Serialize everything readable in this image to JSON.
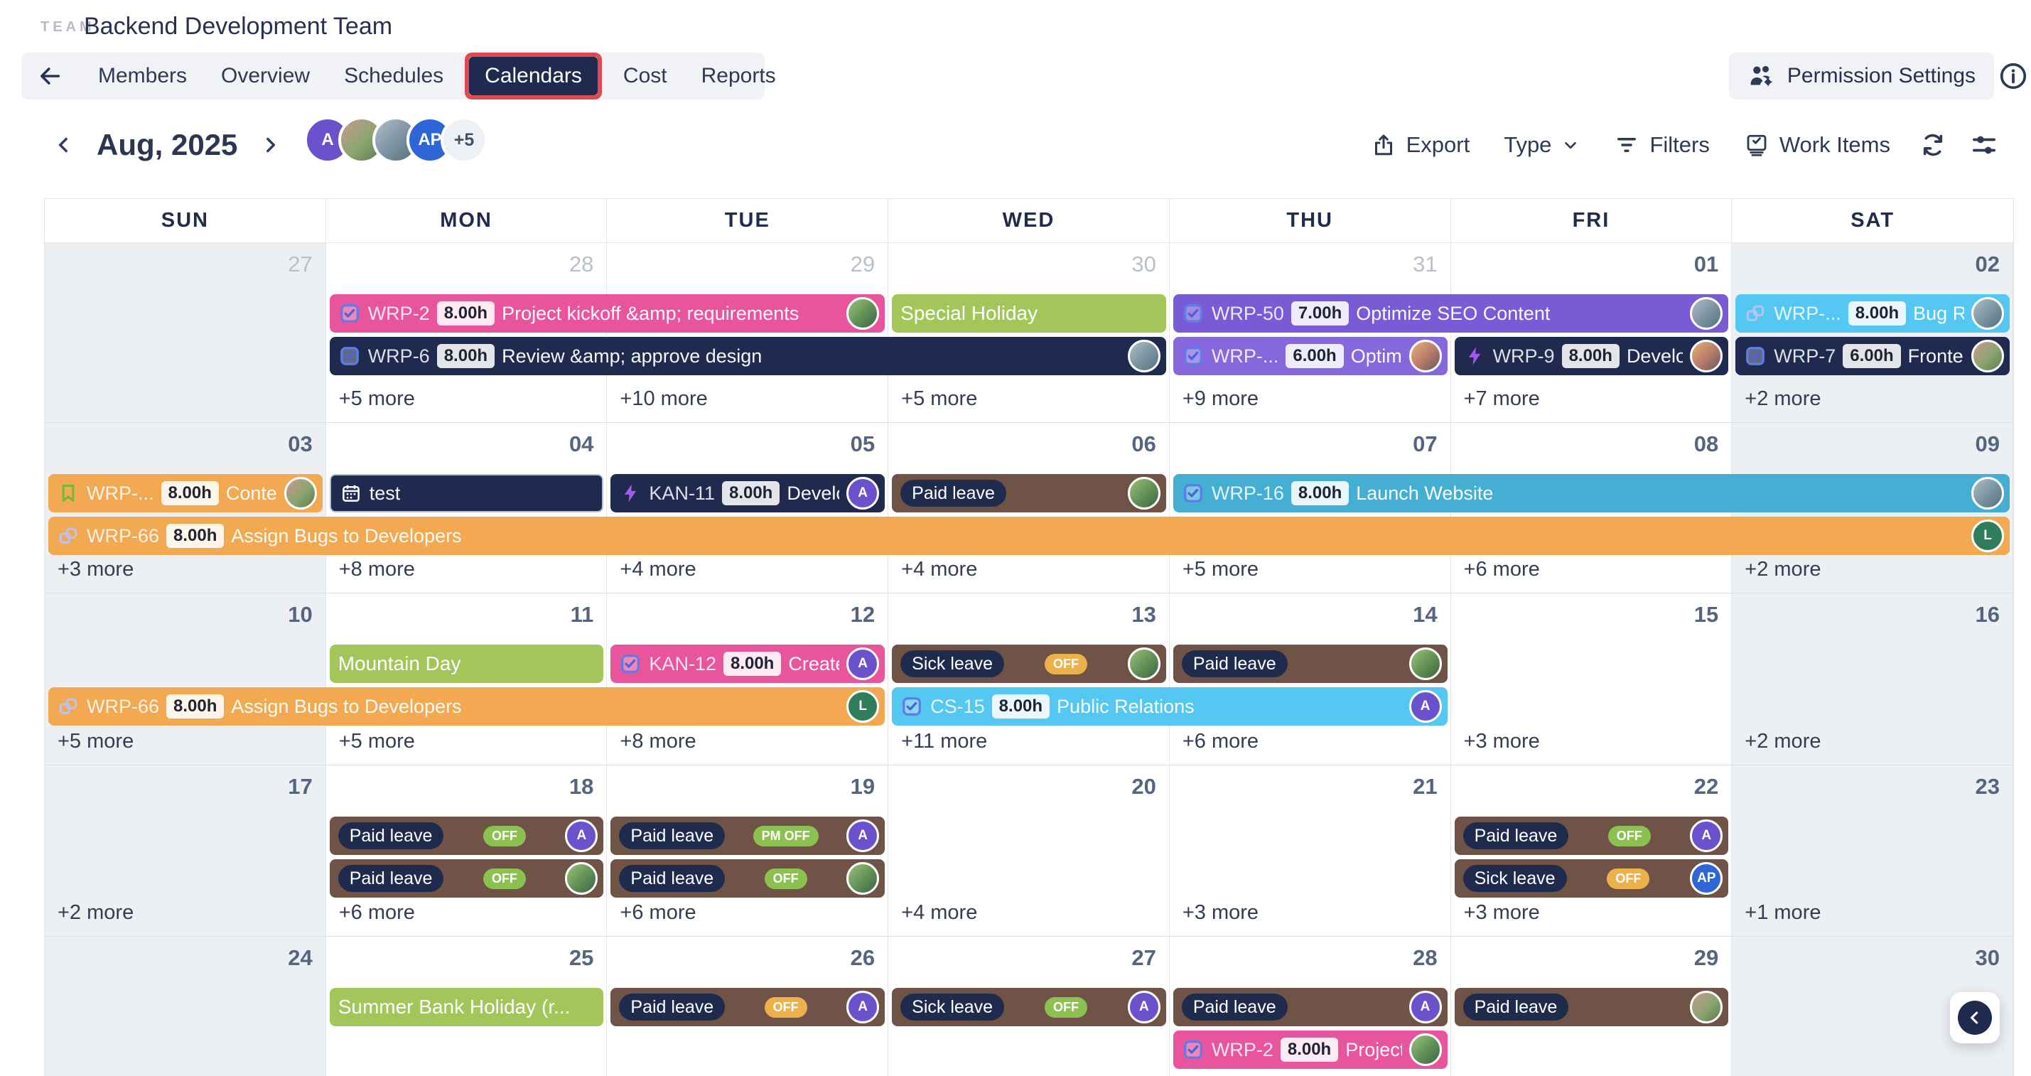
{
  "palette": {
    "accent_red": "#DF4A50",
    "navy": "#1F2A4E",
    "event_pink": "#E9559D",
    "event_green": "#A2C65A",
    "event_purple": "#7A5BD6",
    "event_purple_light": "#8668DC",
    "event_cyan": "#55C7F3",
    "event_teal": "#45AFD3",
    "event_orange": "#F2A952",
    "event_brown": "#6F5347",
    "badge_green": "#8CC152",
    "badge_orange": "#EDB14C",
    "avatar_purple": "#6A52CC",
    "avatar_blue": "#2E66D8",
    "avatar_green": "#2E7D5B",
    "weekend_bg": "#EDF0F3",
    "grid_border": "#E3E6EA"
  },
  "header": {
    "team_label": "TEAM",
    "title": "Backend Development Team",
    "tabs": [
      {
        "label": "Members",
        "active": false
      },
      {
        "label": "Overview",
        "active": false
      },
      {
        "label": "Schedules",
        "active": false
      },
      {
        "label": "Calendars",
        "active": true
      },
      {
        "label": "Cost",
        "active": false
      },
      {
        "label": "Reports",
        "active": false
      }
    ],
    "permission_settings_label": "Permission Settings"
  },
  "toolbar": {
    "month_label": "Aug, 2025",
    "avatars": [
      {
        "kind": "initial",
        "text": "A",
        "bg": "#6A52CC"
      },
      {
        "kind": "photo",
        "variant": "p1"
      },
      {
        "kind": "photo",
        "variant": "p2"
      },
      {
        "kind": "initial",
        "text": "AP",
        "bg": "#2E66D8"
      }
    ],
    "overflow_label": "+5",
    "export_label": "Export",
    "type_label": "Type",
    "filters_label": "Filters",
    "work_items_label": "Work Items"
  },
  "calendar": {
    "day_headers": [
      "SUN",
      "MON",
      "TUE",
      "WED",
      "THU",
      "FRI",
      "SAT"
    ],
    "weeks": [
      {
        "days": [
          {
            "date": "27",
            "outside": true
          },
          {
            "date": "28",
            "outside": true,
            "more": "+5 more"
          },
          {
            "date": "29",
            "outside": true,
            "more": "+10 more"
          },
          {
            "date": "30",
            "outside": true,
            "more": "+5 more"
          },
          {
            "date": "31",
            "outside": true,
            "more": "+9 more"
          },
          {
            "date": "01",
            "more": "+7 more"
          },
          {
            "date": "02",
            "more": "+2 more"
          }
        ],
        "events": [
          {
            "lane": 0,
            "col": 1,
            "span": 2,
            "variant": "pink",
            "kind": "task",
            "icon": "checkbox",
            "code": "WRP-2",
            "hours": "8.00h",
            "title": "Project kickoff &amp; requirements",
            "avatar": {
              "kind": "photo",
              "variant": "p4"
            }
          },
          {
            "lane": 0,
            "col": 3,
            "span": 1,
            "variant": "green",
            "kind": "holiday",
            "title": "Special Holiday"
          },
          {
            "lane": 0,
            "col": 4,
            "span": 2,
            "variant": "purple",
            "kind": "task",
            "icon": "checkbox",
            "code": "WRP-50",
            "hours": "7.00h",
            "title": "Optimize SEO Content",
            "avatar": {
              "kind": "photo",
              "variant": "p2"
            }
          },
          {
            "lane": 0,
            "col": 6,
            "span": 1,
            "variant": "cyan",
            "kind": "task",
            "icon": "link",
            "code": "WRP-...",
            "hours": "8.00h",
            "title": "Bug Report",
            "avatar": {
              "kind": "photo",
              "variant": "p2"
            }
          },
          {
            "lane": 1,
            "col": 1,
            "span": 3,
            "variant": "navy",
            "kind": "task",
            "icon": "checkbox",
            "code": "WRP-6",
            "hours": "8.00h",
            "title": "Review &amp; approve design",
            "avatar": {
              "kind": "photo",
              "variant": "p2"
            }
          },
          {
            "lane": 1,
            "col": 4,
            "span": 1,
            "variant": "purple2",
            "kind": "task",
            "icon": "checkbox",
            "code": "WRP-...",
            "hours": "6.00h",
            "title": "Optimize SEO",
            "avatar": {
              "kind": "photo",
              "variant": "p3"
            }
          },
          {
            "lane": 1,
            "col": 5,
            "span": 1,
            "variant": "navy",
            "kind": "task",
            "icon": "lightning",
            "code": "WRP-9",
            "hours": "8.00h",
            "title": "Development",
            "avatar": {
              "kind": "photo",
              "variant": "p3"
            }
          },
          {
            "lane": 1,
            "col": 6,
            "span": 1,
            "variant": "navy",
            "kind": "task",
            "icon": "checkbox",
            "code": "WRP-7",
            "hours": "6.00h",
            "title": "Frontend Dev",
            "avatar": {
              "kind": "photo",
              "variant": "p1"
            }
          }
        ]
      },
      {
        "days": [
          {
            "date": "03",
            "more": "+3 more"
          },
          {
            "date": "04",
            "more": "+8 more"
          },
          {
            "date": "05",
            "more": "+4 more"
          },
          {
            "date": "06",
            "more": "+4 more"
          },
          {
            "date": "07",
            "more": "+5 more"
          },
          {
            "date": "08",
            "more": "+6 more"
          },
          {
            "date": "09",
            "more": "+2 more"
          }
        ],
        "events": [
          {
            "lane": 0,
            "col": 0,
            "span": 1,
            "variant": "orange",
            "kind": "task",
            "icon": "bookmark",
            "code": "WRP-...",
            "hours": "8.00h",
            "title": "Content Audit",
            "avatar": {
              "kind": "photo",
              "variant": "p1"
            }
          },
          {
            "lane": 0,
            "col": 1,
            "span": 1,
            "variant": "navy",
            "kind": "task",
            "icon": "calendar",
            "title": "test",
            "bordered": true
          },
          {
            "lane": 0,
            "col": 2,
            "span": 1,
            "variant": "navy",
            "kind": "task",
            "icon": "lightning",
            "code": "KAN-11",
            "hours": "8.00h",
            "title": "Development",
            "avatar": {
              "kind": "initial",
              "text": "A",
              "bg": "#6A52CC"
            }
          },
          {
            "lane": 0,
            "col": 3,
            "span": 1,
            "variant": "brown",
            "kind": "leave",
            "label": "Paid leave",
            "avatar": {
              "kind": "photo",
              "variant": "p4"
            }
          },
          {
            "lane": 0,
            "col": 4,
            "span": 3,
            "variant": "teal",
            "kind": "task",
            "icon": "checkbox",
            "code": "WRP-16",
            "hours": "8.00h",
            "title": "Launch Website",
            "avatar": {
              "kind": "photo",
              "variant": "p2"
            }
          },
          {
            "lane": 1,
            "col": 0,
            "span": 7,
            "variant": "orange",
            "kind": "task",
            "icon": "link",
            "code": "WRP-66",
            "hours": "8.00h",
            "title": "Assign Bugs to Developers",
            "avatar": {
              "kind": "initial",
              "text": "L",
              "bg": "#2E7D5B"
            }
          }
        ]
      },
      {
        "days": [
          {
            "date": "10",
            "more": "+5 more"
          },
          {
            "date": "11",
            "more": "+5 more"
          },
          {
            "date": "12",
            "more": "+8 more"
          },
          {
            "date": "13",
            "more": "+11 more"
          },
          {
            "date": "14",
            "more": "+6 more"
          },
          {
            "date": "15",
            "more": "+3 more"
          },
          {
            "date": "16",
            "more": "+2 more"
          }
        ],
        "events": [
          {
            "lane": 0,
            "col": 1,
            "span": 1,
            "variant": "green",
            "kind": "holiday",
            "title": "Mountain Day"
          },
          {
            "lane": 0,
            "col": 2,
            "span": 1,
            "variant": "pink",
            "kind": "task",
            "icon": "checkbox",
            "code": "KAN-12",
            "hours": "8.00h",
            "title": "Create User",
            "avatar": {
              "kind": "initial",
              "text": "A",
              "bg": "#6A52CC"
            }
          },
          {
            "lane": 0,
            "col": 3,
            "span": 1,
            "variant": "brown",
            "kind": "leave",
            "label": "Sick leave",
            "badge": {
              "text": "OFF",
              "color": "orange"
            },
            "avatar": {
              "kind": "photo",
              "variant": "p4"
            }
          },
          {
            "lane": 0,
            "col": 4,
            "span": 1,
            "variant": "brown",
            "kind": "leave",
            "label": "Paid leave",
            "avatar": {
              "kind": "photo",
              "variant": "p4"
            }
          },
          {
            "lane": 1,
            "col": 0,
            "span": 3,
            "variant": "orange",
            "kind": "task",
            "icon": "link",
            "code": "WRP-66",
            "hours": "8.00h",
            "title": "Assign Bugs to Developers",
            "avatar": {
              "kind": "initial",
              "text": "L",
              "bg": "#2E7D5B"
            }
          },
          {
            "lane": 1,
            "col": 3,
            "span": 2,
            "variant": "cyan",
            "kind": "task",
            "icon": "checkbox",
            "code": "CS-15",
            "hours": "8.00h",
            "title": "Public Relations",
            "avatar": {
              "kind": "initial",
              "text": "A",
              "bg": "#6A52CC"
            }
          }
        ]
      },
      {
        "days": [
          {
            "date": "17",
            "more": "+2 more"
          },
          {
            "date": "18",
            "more": "+6 more"
          },
          {
            "date": "19",
            "more": "+6 more"
          },
          {
            "date": "20",
            "more": "+4 more"
          },
          {
            "date": "21",
            "more": "+3 more"
          },
          {
            "date": "22",
            "more": "+3 more"
          },
          {
            "date": "23",
            "more": "+1 more"
          }
        ],
        "events": [
          {
            "lane": 0,
            "col": 1,
            "span": 1,
            "variant": "brown",
            "kind": "leave",
            "label": "Paid leave",
            "badge": {
              "text": "OFF",
              "color": "green"
            },
            "avatar": {
              "kind": "initial",
              "text": "A",
              "bg": "#6A52CC"
            }
          },
          {
            "lane": 0,
            "col": 2,
            "span": 1,
            "variant": "brown",
            "kind": "leave",
            "label": "Paid leave",
            "badge": {
              "text": "PM OFF",
              "color": "green"
            },
            "avatar": {
              "kind": "initial",
              "text": "A",
              "bg": "#6A52CC"
            }
          },
          {
            "lane": 0,
            "col": 5,
            "span": 1,
            "variant": "brown",
            "kind": "leave",
            "label": "Paid leave",
            "badge": {
              "text": "OFF",
              "color": "green"
            },
            "avatar": {
              "kind": "initial",
              "text": "A",
              "bg": "#6A52CC"
            }
          },
          {
            "lane": 1,
            "col": 1,
            "span": 1,
            "variant": "brown",
            "kind": "leave",
            "label": "Paid leave",
            "badge": {
              "text": "OFF",
              "color": "green"
            },
            "avatar": {
              "kind": "photo",
              "variant": "p4"
            }
          },
          {
            "lane": 1,
            "col": 2,
            "span": 1,
            "variant": "brown",
            "kind": "leave",
            "label": "Paid leave",
            "badge": {
              "text": "OFF",
              "color": "green"
            },
            "avatar": {
              "kind": "photo",
              "variant": "p4"
            }
          },
          {
            "lane": 1,
            "col": 5,
            "span": 1,
            "variant": "brown",
            "kind": "leave",
            "label": "Sick leave",
            "badge": {
              "text": "OFF",
              "color": "orange"
            },
            "avatar": {
              "kind": "initial",
              "text": "AP",
              "bg": "#2E66D8"
            }
          }
        ]
      },
      {
        "days": [
          {
            "date": "24"
          },
          {
            "date": "25"
          },
          {
            "date": "26"
          },
          {
            "date": "27"
          },
          {
            "date": "28"
          },
          {
            "date": "29"
          },
          {
            "date": "30"
          }
        ],
        "events": [
          {
            "lane": 0,
            "col": 1,
            "span": 1,
            "variant": "green",
            "kind": "holiday",
            "title": "Summer Bank Holiday (r..."
          },
          {
            "lane": 0,
            "col": 2,
            "span": 1,
            "variant": "brown",
            "kind": "leave",
            "label": "Paid leave",
            "badge": {
              "text": "OFF",
              "color": "orange"
            },
            "avatar": {
              "kind": "initial",
              "text": "A",
              "bg": "#6A52CC"
            }
          },
          {
            "lane": 0,
            "col": 3,
            "span": 1,
            "variant": "brown",
            "kind": "leave",
            "label": "Sick leave",
            "badge": {
              "text": "OFF",
              "color": "green"
            },
            "avatar": {
              "kind": "initial",
              "text": "A",
              "bg": "#6A52CC"
            }
          },
          {
            "lane": 0,
            "col": 4,
            "span": 1,
            "variant": "brown",
            "kind": "leave",
            "label": "Paid leave",
            "avatar": {
              "kind": "initial",
              "text": "A",
              "bg": "#6A52CC"
            }
          },
          {
            "lane": 0,
            "col": 5,
            "span": 1,
            "variant": "brown",
            "kind": "leave",
            "label": "Paid leave",
            "avatar": {
              "kind": "photo",
              "variant": "p1"
            }
          },
          {
            "lane": 1,
            "col": 4,
            "span": 1,
            "variant": "pink",
            "kind": "task",
            "icon": "checkbox",
            "code": "WRP-2",
            "hours": "8.00h",
            "title": "Project kickoff",
            "avatar": {
              "kind": "photo",
              "variant": "p4"
            }
          }
        ]
      }
    ]
  },
  "floating_panel_toggle": {
    "chevron": "‹"
  }
}
